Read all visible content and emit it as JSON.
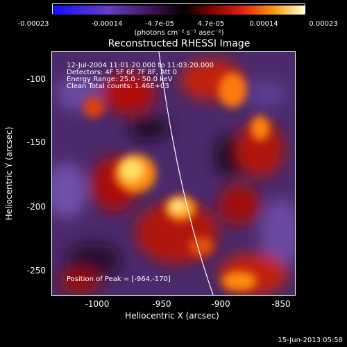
{
  "colorbar": {
    "ticks": [
      "-0.00023",
      "-0.00014",
      "-4.7e-05",
      "4.7e-05",
      "0.00014",
      "0.00023"
    ],
    "units": "(photons cm⁻² s⁻¹ asec⁻²)"
  },
  "title": "Reconstructed RHESSI Image",
  "info": {
    "time": "12-Jul-2004 11:01:20.000 to 11:03:20.000",
    "detectors": "Detectors: 4F 5F 6F 7F 8F, Att 0",
    "energy": "Energy Range: 25.0 - 50.0 keV",
    "clean": "Clean    Total counts: 1.46E+03",
    "peak": "Position of Peak = [-964,-170]"
  },
  "axes": {
    "xlabel": "Heliocentric X (arcsec)",
    "ylabel": "Heliocentric Y (arcsec)",
    "xticks": [
      "-1000",
      "-950",
      "-900",
      "-850"
    ],
    "yticks": [
      "-100",
      "-150",
      "-200",
      "-250"
    ]
  },
  "timestamp": "15-Jun-2013 05:58",
  "colors": {
    "background": "#000000",
    "axes": "#ffffff",
    "limb": "#ffffff"
  }
}
